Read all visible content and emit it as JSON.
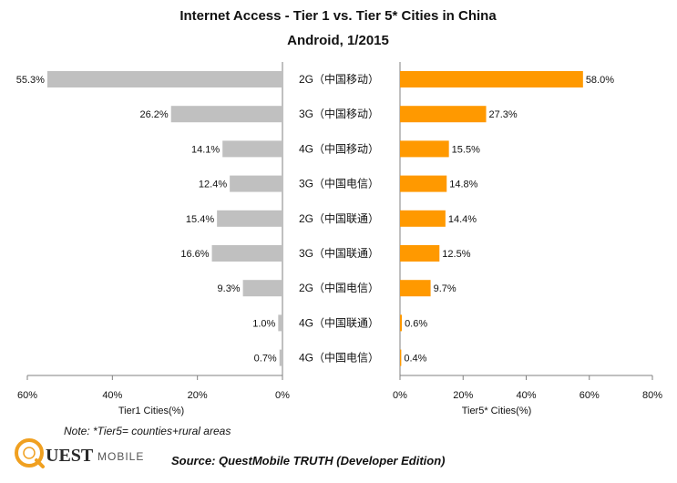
{
  "chart_data": {
    "type": "bar",
    "orientation": "horizontal-butterfly",
    "title": "Internet Access  - Tier 1 vs. Tier 5* Cities in China",
    "subtitle": "Android, 1/2015",
    "categories": [
      "2G（中国移动）",
      "3G（中国移动）",
      "4G（中国移动）",
      "3G（中国电信）",
      "2G（中国联通）",
      "3G（中国联通）",
      "2G（中国电信）",
      "4G（中国联通）",
      "4G（中国电信）"
    ],
    "series": [
      {
        "name": "Tier1 Cities(%)",
        "values": [
          55.3,
          26.2,
          14.1,
          12.4,
          15.4,
          16.6,
          9.3,
          1.0,
          0.7
        ],
        "labels": [
          "55.3%",
          "26.2%",
          "14.1%",
          "12.4%",
          "15.4%",
          "16.6%",
          "9.3%",
          "1.0%",
          "0.7%"
        ],
        "color": "#c0c0c0",
        "xlim": [
          60,
          0
        ],
        "ticks": [
          "60%",
          "40%",
          "20%",
          "0%"
        ],
        "tick_values": [
          60,
          40,
          20,
          0
        ]
      },
      {
        "name": "Tier5* Cities(%)",
        "values": [
          58.0,
          27.3,
          15.5,
          14.8,
          14.4,
          12.5,
          9.7,
          0.6,
          0.4
        ],
        "labels": [
          "58.0%",
          "27.3%",
          "15.5%",
          "14.8%",
          "14.4%",
          "12.5%",
          "9.7%",
          "0.6%",
          "0.4%"
        ],
        "color": "#ff9900",
        "xlim": [
          0,
          80
        ],
        "ticks": [
          "0%",
          "20%",
          "40%",
          "60%",
          "80%"
        ],
        "tick_values": [
          0,
          20,
          40,
          60,
          80
        ]
      }
    ],
    "xlabel_left": "Tier1 Cities(%)",
    "xlabel_right": "Tier5* Cities(%)",
    "grid": false,
    "legend": "none"
  },
  "footer": {
    "note": "Note: *Tier5= counties+rural areas",
    "source": "Source: QuestMobile TRUTH (Developer Edition)"
  },
  "logo": {
    "quest": "UEST",
    "mobile": "MOBILE",
    "ring_color": "#f0a020"
  }
}
